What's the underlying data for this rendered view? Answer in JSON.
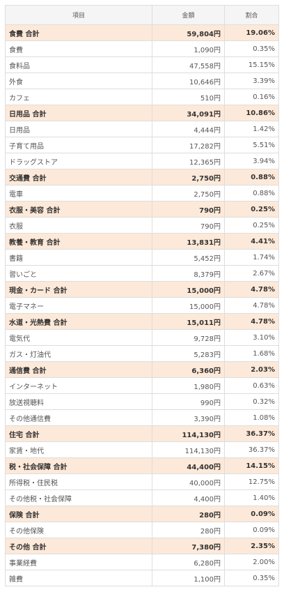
{
  "table": {
    "header": [
      "項目",
      "金額",
      "割合"
    ],
    "rows": [
      {
        "cells": [
          "食費 合計",
          "59,804円",
          "19.06%"
        ],
        "subtotal": true
      },
      {
        "cells": [
          "食費",
          "1,090円",
          "0.35%"
        ],
        "subtotal": false
      },
      {
        "cells": [
          "食料品",
          "47,558円",
          "15.15%"
        ],
        "subtotal": false
      },
      {
        "cells": [
          "外食",
          "10,646円",
          "3.39%"
        ],
        "subtotal": false
      },
      {
        "cells": [
          "カフェ",
          "510円",
          "0.16%"
        ],
        "subtotal": false
      },
      {
        "cells": [
          "日用品 合計",
          "34,091円",
          "10.86%"
        ],
        "subtotal": true
      },
      {
        "cells": [
          "日用品",
          "4,444円",
          "1.42%"
        ],
        "subtotal": false
      },
      {
        "cells": [
          "子育て用品",
          "17,282円",
          "5.51%"
        ],
        "subtotal": false
      },
      {
        "cells": [
          "ドラッグストア",
          "12,365円",
          "3.94%"
        ],
        "subtotal": false
      },
      {
        "cells": [
          "交通費 合計",
          "2,750円",
          "0.88%"
        ],
        "subtotal": true
      },
      {
        "cells": [
          "電車",
          "2,750円",
          "0.88%"
        ],
        "subtotal": false
      },
      {
        "cells": [
          "衣服・美容 合計",
          "790円",
          "0.25%"
        ],
        "subtotal": true
      },
      {
        "cells": [
          "衣服",
          "790円",
          "0.25%"
        ],
        "subtotal": false
      },
      {
        "cells": [
          "教養・教育 合計",
          "13,831円",
          "4.41%"
        ],
        "subtotal": true
      },
      {
        "cells": [
          "書籍",
          "5,452円",
          "1.74%"
        ],
        "subtotal": false
      },
      {
        "cells": [
          "習いごと",
          "8,379円",
          "2.67%"
        ],
        "subtotal": false
      },
      {
        "cells": [
          "現金・カード 合計",
          "15,000円",
          "4.78%"
        ],
        "subtotal": true
      },
      {
        "cells": [
          "電子マネー",
          "15,000円",
          "4.78%"
        ],
        "subtotal": false
      },
      {
        "cells": [
          "水道・光熱費 合計",
          "15,011円",
          "4.78%"
        ],
        "subtotal": true
      },
      {
        "cells": [
          "電気代",
          "9,728円",
          "3.10%"
        ],
        "subtotal": false
      },
      {
        "cells": [
          "ガス・灯油代",
          "5,283円",
          "1.68%"
        ],
        "subtotal": false
      },
      {
        "cells": [
          "通信費 合計",
          "6,360円",
          "2.03%"
        ],
        "subtotal": true
      },
      {
        "cells": [
          "インターネット",
          "1,980円",
          "0.63%"
        ],
        "subtotal": false
      },
      {
        "cells": [
          "放送視聴料",
          "990円",
          "0.32%"
        ],
        "subtotal": false
      },
      {
        "cells": [
          "その他通信費",
          "3,390円",
          "1.08%"
        ],
        "subtotal": false
      },
      {
        "cells": [
          "住宅 合計",
          "114,130円",
          "36.37%"
        ],
        "subtotal": true
      },
      {
        "cells": [
          "家賃・地代",
          "114,130円",
          "36.37%"
        ],
        "subtotal": false
      },
      {
        "cells": [
          "税・社会保障 合計",
          "44,400円",
          "14.15%"
        ],
        "subtotal": true
      },
      {
        "cells": [
          "所得税・住民税",
          "40,000円",
          "12.75%"
        ],
        "subtotal": false
      },
      {
        "cells": [
          "その他税・社会保障",
          "4,400円",
          "1.40%"
        ],
        "subtotal": false
      },
      {
        "cells": [
          "保険 合計",
          "280円",
          "0.09%"
        ],
        "subtotal": true
      },
      {
        "cells": [
          "その他保険",
          "280円",
          "0.09%"
        ],
        "subtotal": false
      },
      {
        "cells": [
          "その他 合計",
          "7,380円",
          "2.35%"
        ],
        "subtotal": true
      },
      {
        "cells": [
          "事業経費",
          "6,280円",
          "2.00%"
        ],
        "subtotal": false
      },
      {
        "cells": [
          "雑費",
          "1,100円",
          "0.35%"
        ],
        "subtotal": false
      }
    ]
  }
}
